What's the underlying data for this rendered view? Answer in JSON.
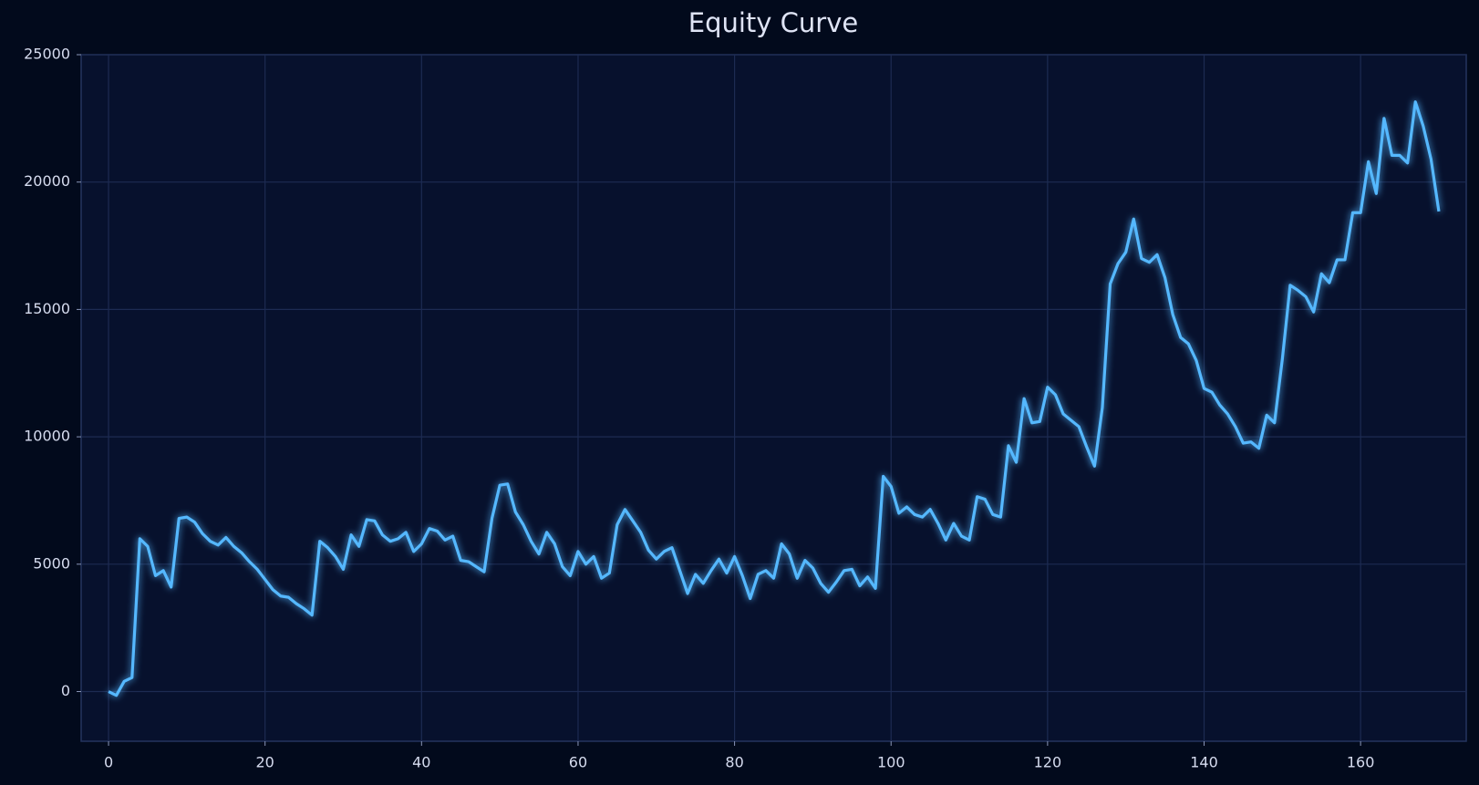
{
  "chart_data": {
    "type": "line",
    "title": "Equity Curve",
    "x": [
      0,
      1,
      2,
      3,
      4,
      5,
      6,
      7,
      8,
      9,
      10,
      11,
      12,
      13,
      14,
      15,
      16,
      17,
      18,
      19,
      20,
      21,
      22,
      23,
      24,
      25,
      26,
      27,
      28,
      29,
      30,
      31,
      32,
      33,
      34,
      35,
      36,
      37,
      38,
      39,
      40,
      41,
      42,
      43,
      44,
      45,
      46,
      47,
      48,
      49,
      50,
      51,
      52,
      53,
      54,
      55,
      56,
      57,
      58,
      59,
      60,
      61,
      62,
      63,
      64,
      65,
      66,
      67,
      68,
      69,
      70,
      71,
      72,
      73,
      74,
      75,
      76,
      77,
      78,
      79,
      80,
      81,
      82,
      83,
      84,
      85,
      86,
      87,
      88,
      89,
      90,
      91,
      92,
      93,
      94,
      95,
      96,
      97,
      98,
      99,
      100,
      101,
      102,
      103,
      104,
      105,
      106,
      107,
      108,
      109,
      110,
      111,
      112,
      113,
      114,
      115,
      116,
      117,
      118,
      119,
      120,
      121,
      122,
      123,
      124,
      125,
      126,
      127,
      128,
      129,
      130,
      131,
      132,
      133,
      134,
      135,
      136,
      137,
      138,
      139,
      140,
      141,
      142,
      143,
      144,
      145,
      146,
      147,
      148,
      149,
      150,
      151,
      152,
      153,
      154,
      155,
      156,
      157,
      158,
      159,
      160,
      161,
      162,
      163,
      164,
      165,
      166,
      167,
      168,
      169,
      170
    ],
    "series": [
      {
        "name": "Equity",
        "color": "#55b8ff",
        "values": [
          0,
          -150,
          400,
          550,
          6000,
          5700,
          4550,
          4750,
          4100,
          6800,
          6850,
          6650,
          6200,
          5900,
          5750,
          6050,
          5700,
          5450,
          5100,
          4800,
          4400,
          4000,
          3750,
          3700,
          3450,
          3250,
          3000,
          5900,
          5650,
          5300,
          4800,
          6150,
          5700,
          6750,
          6700,
          6150,
          5900,
          6000,
          6250,
          5500,
          5800,
          6400,
          6300,
          5950,
          6100,
          5150,
          5100,
          4900,
          4700,
          6800,
          8100,
          8150,
          7050,
          6550,
          5900,
          5400,
          6250,
          5800,
          4900,
          4550,
          5500,
          5000,
          5300,
          4450,
          4650,
          6550,
          7150,
          6700,
          6250,
          5550,
          5200,
          5500,
          5650,
          4750,
          3850,
          4600,
          4250,
          4750,
          5200,
          4650,
          5300,
          4550,
          3650,
          4600,
          4750,
          4450,
          5800,
          5400,
          4450,
          5150,
          4850,
          4250,
          3900,
          4300,
          4750,
          4800,
          4150,
          4500,
          4050,
          8450,
          8050,
          7000,
          7250,
          6950,
          6850,
          7150,
          6600,
          5950,
          6600,
          6100,
          5950,
          7650,
          7550,
          6950,
          6850,
          9650,
          9000,
          11500,
          10550,
          10600,
          11950,
          11650,
          10900,
          10650,
          10400,
          9600,
          8850,
          11150,
          16000,
          16800,
          17250,
          18550,
          17000,
          16850,
          17150,
          16250,
          14800,
          13900,
          13650,
          13000,
          11900,
          11750,
          11250,
          10900,
          10400,
          9750,
          9800,
          9550,
          10850,
          10550,
          13050,
          15950,
          15750,
          15500,
          14900,
          16400,
          16050,
          16950,
          16950,
          18800,
          18800,
          20800,
          19550,
          22500,
          21050,
          21050,
          20750,
          23150,
          22200,
          20900,
          18850
        ]
      }
    ],
    "xlim": [
      -3.5,
      173.5
    ],
    "xticks": [
      0,
      20,
      40,
      60,
      80,
      100,
      120,
      140,
      160
    ],
    "ylim": [
      -1950,
      25000
    ],
    "yticks": [
      0,
      5000,
      10000,
      15000,
      20000,
      25000
    ],
    "grid": true
  }
}
